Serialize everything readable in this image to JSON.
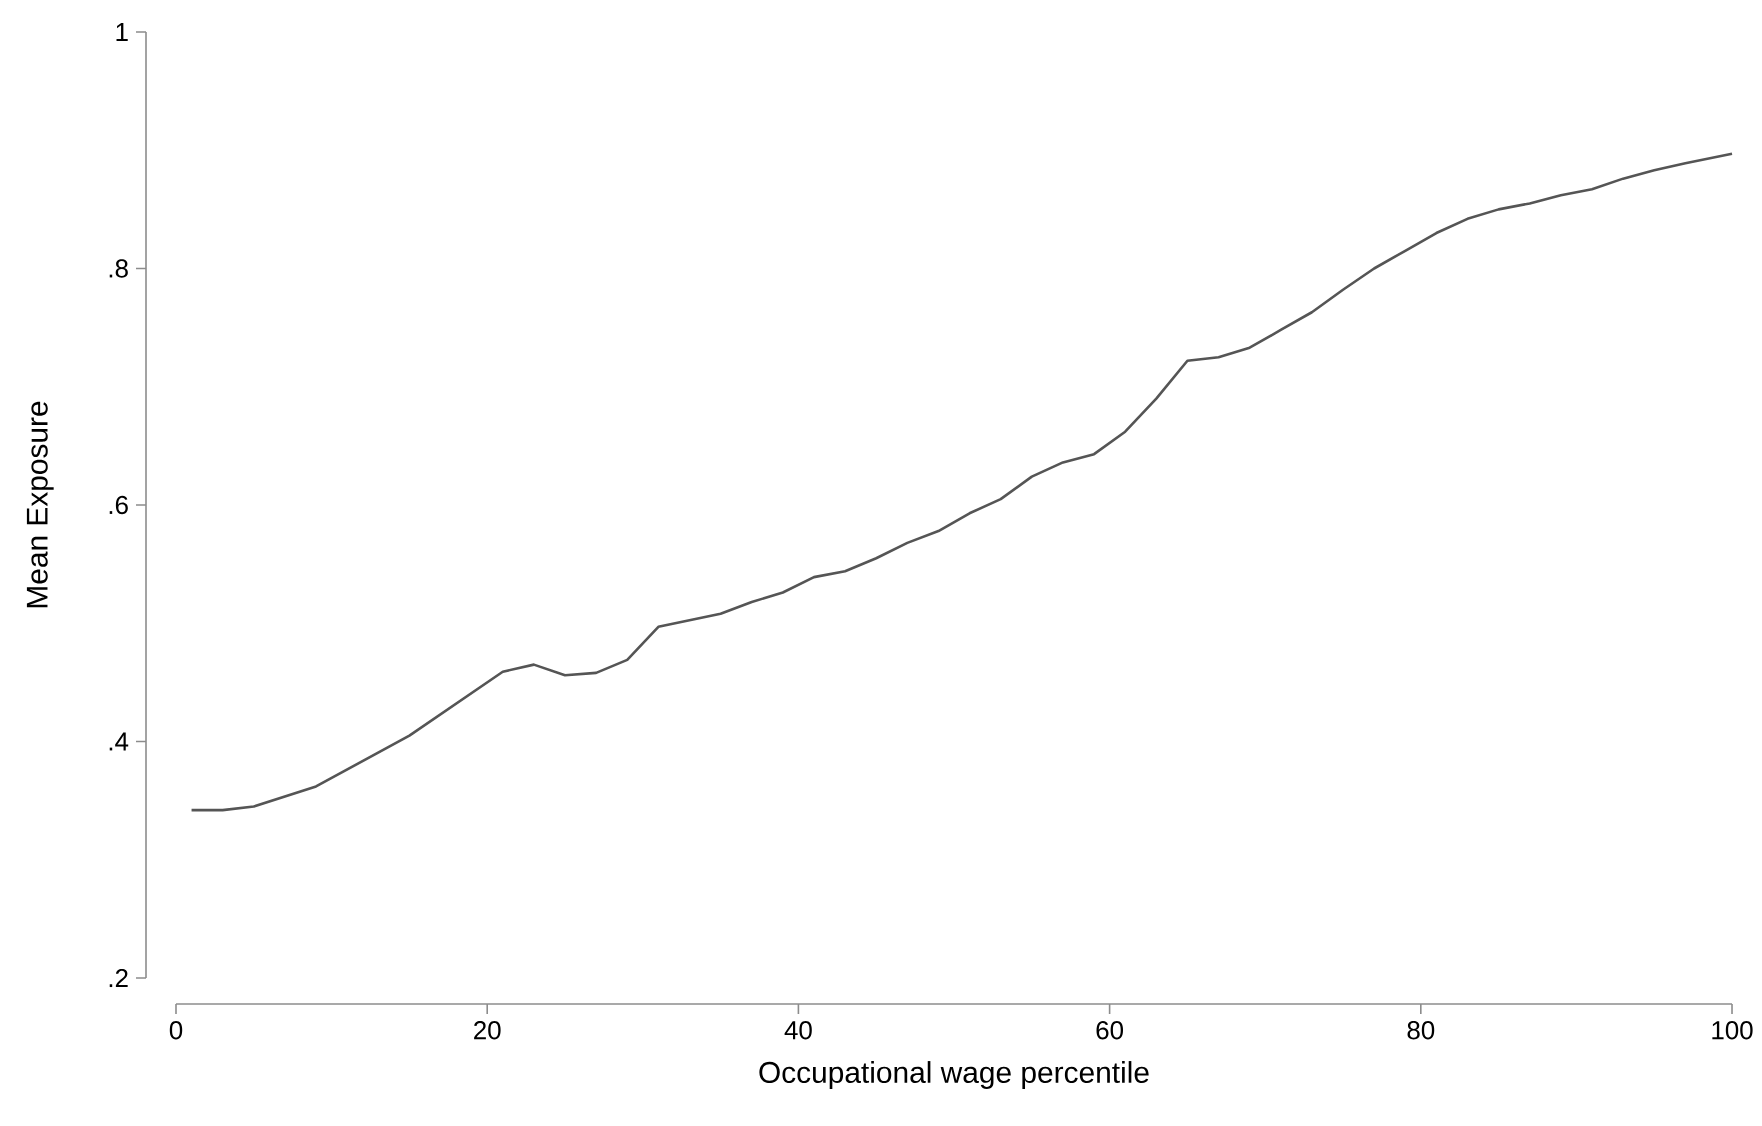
{
  "chart_data": {
    "type": "line",
    "xlabel": "Occupational wage percentile",
    "ylabel": "Mean Exposure",
    "xlim": [
      0,
      100
    ],
    "ylim": [
      0.2,
      1
    ],
    "xticks": [
      0,
      20,
      40,
      60,
      80,
      100
    ],
    "yticks": [
      {
        "value": 0.2,
        "label": ".2"
      },
      {
        "value": 0.4,
        "label": ".4"
      },
      {
        "value": 0.6,
        "label": ".6"
      },
      {
        "value": 0.8,
        "label": ".8"
      },
      1
    ],
    "marker": "none",
    "line_style": "solid",
    "series": [
      {
        "color": "#555555",
        "x": [
          1,
          3,
          5,
          9,
          15,
          21,
          23,
          25,
          27,
          29,
          31,
          35,
          37,
          39,
          41,
          43,
          45,
          47,
          49,
          51,
          53,
          55,
          57,
          59,
          61,
          63,
          65,
          67,
          69,
          71,
          73,
          75,
          77,
          79,
          81,
          83,
          85,
          87,
          89,
          91,
          93,
          95,
          97,
          100
        ],
        "values": [
          0.342,
          0.342,
          0.345,
          0.362,
          0.405,
          0.459,
          0.465,
          0.456,
          0.458,
          0.469,
          0.497,
          0.508,
          0.518,
          0.526,
          0.539,
          0.544,
          0.555,
          0.568,
          0.578,
          0.593,
          0.605,
          0.624,
          0.636,
          0.643,
          0.662,
          0.69,
          0.722,
          0.725,
          0.733,
          0.748,
          0.763,
          0.782,
          0.8,
          0.815,
          0.83,
          0.842,
          0.85,
          0.855,
          0.862,
          0.867,
          0.876,
          0.883,
          0.889,
          0.897
        ]
      }
    ]
  }
}
